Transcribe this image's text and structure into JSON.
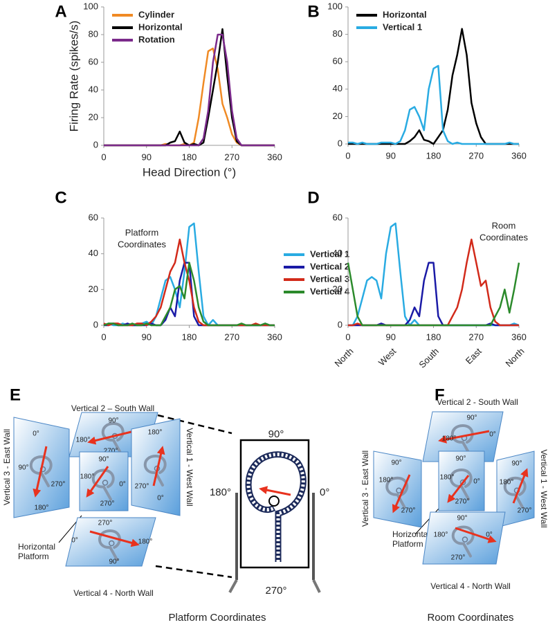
{
  "chart_data": [
    {
      "type": "line",
      "panel": "A",
      "x_label": "Head Direction (°)",
      "y_label": "Firing Rate (spikes/s)",
      "x": [
        0,
        10,
        20,
        30,
        40,
        50,
        60,
        70,
        80,
        90,
        100,
        110,
        120,
        130,
        140,
        150,
        160,
        170,
        180,
        190,
        200,
        210,
        220,
        230,
        240,
        250,
        260,
        270,
        280,
        290,
        300,
        310,
        320,
        330,
        340,
        350,
        360
      ],
      "xlim": [
        0,
        360
      ],
      "xticks": [
        0,
        90,
        180,
        270,
        360
      ],
      "ylim": [
        0,
        100
      ],
      "yticks": [
        0,
        20,
        40,
        60,
        80,
        100
      ],
      "series": [
        {
          "name": "Cylinder",
          "color": "#f08a24",
          "values": [
            0,
            0,
            0,
            0,
            0,
            0,
            0,
            0,
            0,
            0,
            0,
            0,
            0,
            1,
            0,
            0,
            0,
            1,
            0,
            2,
            20,
            45,
            68,
            70,
            55,
            30,
            20,
            8,
            2,
            0,
            0,
            0,
            0,
            0,
            0,
            0,
            0
          ]
        },
        {
          "name": "Horizontal",
          "color": "#000000",
          "values": [
            0,
            0,
            0,
            0,
            0,
            0,
            0,
            0,
            0,
            0,
            0,
            0,
            0,
            0,
            2,
            3,
            10,
            2,
            0,
            1,
            0,
            2,
            20,
            40,
            60,
            84,
            50,
            20,
            3,
            0,
            0,
            0,
            0,
            0,
            0,
            0,
            0
          ]
        },
        {
          "name": "Rotation",
          "color": "#7b2a8b",
          "values": [
            0,
            0,
            0,
            0,
            0,
            0,
            0,
            0,
            0,
            0,
            0,
            0,
            0,
            0,
            0,
            0,
            0,
            0,
            0,
            0,
            0,
            5,
            25,
            60,
            80,
            80,
            60,
            25,
            5,
            0,
            0,
            0,
            0,
            0,
            0,
            0,
            0
          ]
        }
      ]
    },
    {
      "type": "line",
      "panel": "B",
      "x": [
        0,
        10,
        20,
        30,
        40,
        50,
        60,
        70,
        80,
        90,
        100,
        110,
        120,
        130,
        140,
        150,
        160,
        170,
        180,
        190,
        200,
        210,
        220,
        230,
        240,
        250,
        260,
        270,
        280,
        290,
        300,
        310,
        320,
        330,
        340,
        350,
        360
      ],
      "xlim": [
        0,
        360
      ],
      "xticks": [
        0,
        90,
        180,
        270,
        360
      ],
      "ylim": [
        0,
        100
      ],
      "yticks": [
        0,
        20,
        40,
        60,
        80,
        100
      ],
      "series": [
        {
          "name": "Horizontal",
          "color": "#000000",
          "values": [
            0,
            0,
            0,
            0,
            0,
            0,
            0,
            0,
            0,
            0,
            0,
            0,
            0,
            2,
            5,
            10,
            3,
            2,
            0,
            5,
            10,
            25,
            50,
            65,
            84,
            65,
            30,
            15,
            5,
            0,
            0,
            0,
            0,
            0,
            0,
            0,
            0
          ]
        },
        {
          "name": "Vertical 1",
          "color": "#29abe2",
          "values": [
            1,
            1,
            0,
            1,
            0,
            0,
            0,
            1,
            1,
            1,
            0,
            2,
            10,
            25,
            27,
            20,
            10,
            40,
            55,
            57,
            10,
            2,
            0,
            1,
            0,
            0,
            0,
            0,
            0,
            0,
            0,
            0,
            0,
            0,
            1,
            0,
            0
          ]
        }
      ]
    },
    {
      "type": "line",
      "panel": "C",
      "annotation": [
        "Platform",
        "Coordinates"
      ],
      "x": [
        0,
        10,
        20,
        30,
        40,
        50,
        60,
        70,
        80,
        90,
        100,
        110,
        120,
        130,
        140,
        150,
        160,
        170,
        180,
        190,
        200,
        210,
        220,
        230,
        240,
        250,
        260,
        270,
        280,
        290,
        300,
        310,
        320,
        330,
        340,
        350,
        360
      ],
      "xlim": [
        0,
        360
      ],
      "xticks": [
        0,
        90,
        180,
        270,
        360
      ],
      "ylim": [
        0,
        60
      ],
      "yticks": [
        0,
        20,
        40,
        60
      ],
      "series": [
        {
          "name": "Vertical 1",
          "color": "#29abe2",
          "values": [
            0,
            1,
            0,
            0,
            1,
            0,
            0,
            0,
            1,
            2,
            0,
            5,
            15,
            25,
            27,
            20,
            10,
            30,
            55,
            57,
            30,
            5,
            0,
            3,
            0,
            0,
            0,
            0,
            0,
            0,
            0,
            0,
            0,
            0,
            1,
            0,
            0
          ]
        },
        {
          "name": "Vertical 2",
          "color": "#1a1aa6",
          "values": [
            0,
            0,
            1,
            0,
            0,
            1,
            0,
            0,
            0,
            0,
            1,
            0,
            0,
            3,
            10,
            5,
            25,
            35,
            35,
            5,
            0,
            0,
            0,
            0,
            0,
            0,
            0,
            0,
            0,
            0,
            0,
            0,
            0,
            0,
            0,
            0,
            0
          ]
        },
        {
          "name": "Vertical 3",
          "color": "#d22a1a",
          "values": [
            1,
            0,
            1,
            1,
            0,
            0,
            0,
            1,
            1,
            0,
            2,
            5,
            10,
            20,
            30,
            35,
            48,
            35,
            25,
            10,
            2,
            0,
            0,
            0,
            0,
            0,
            0,
            0,
            0,
            0,
            0,
            0,
            1,
            0,
            0,
            0,
            0
          ]
        },
        {
          "name": "Vertical 4",
          "color": "#2b8a2b",
          "values": [
            0,
            1,
            1,
            0,
            0,
            0,
            1,
            0,
            0,
            1,
            0,
            0,
            0,
            5,
            10,
            20,
            22,
            15,
            35,
            25,
            10,
            2,
            0,
            0,
            0,
            0,
            0,
            0,
            0,
            1,
            0,
            0,
            0,
            0,
            1,
            0,
            0
          ]
        }
      ]
    },
    {
      "type": "line",
      "panel": "D",
      "annotation": [
        "Room",
        "Coordinates"
      ],
      "x": [
        0,
        10,
        20,
        30,
        40,
        50,
        60,
        70,
        80,
        90,
        100,
        110,
        120,
        130,
        140,
        150,
        160,
        170,
        180,
        190,
        200,
        210,
        220,
        230,
        240,
        250,
        260,
        270,
        280,
        290,
        300,
        310,
        320,
        330,
        340,
        350,
        360
      ],
      "xlim": [
        0,
        360
      ],
      "xticks": [
        0,
        90,
        180,
        270,
        360
      ],
      "xtick_names": [
        "North",
        "West",
        "South",
        "East",
        "North"
      ],
      "ylim": [
        0,
        60
      ],
      "yticks": [
        0,
        20,
        40,
        60
      ],
      "series": [
        {
          "name": "Vertical 1",
          "color": "#29abe2",
          "values": [
            0,
            0,
            5,
            15,
            25,
            27,
            25,
            15,
            40,
            55,
            57,
            30,
            5,
            0,
            3,
            0,
            0,
            0,
            0,
            0,
            0,
            0,
            0,
            0,
            0,
            0,
            0,
            0,
            0,
            0,
            0,
            0,
            0,
            0,
            0,
            1,
            0
          ]
        },
        {
          "name": "Vertical 2",
          "color": "#1a1aa6",
          "values": [
            0,
            0,
            0,
            0,
            0,
            0,
            0,
            1,
            0,
            0,
            0,
            0,
            0,
            3,
            10,
            5,
            25,
            35,
            35,
            5,
            0,
            0,
            0,
            0,
            0,
            0,
            0,
            0,
            0,
            0,
            1,
            0,
            0,
            0,
            0,
            0,
            0
          ]
        },
        {
          "name": "Vertical 3",
          "color": "#d22a1a",
          "values": [
            0,
            0,
            1,
            0,
            0,
            0,
            0,
            0,
            0,
            0,
            0,
            0,
            0,
            0,
            0,
            0,
            0,
            0,
            0,
            0,
            0,
            0,
            5,
            10,
            20,
            35,
            48,
            35,
            22,
            25,
            10,
            2,
            0,
            0,
            0,
            0,
            0
          ]
        },
        {
          "name": "Vertical 4",
          "color": "#2b8a2b",
          "values": [
            35,
            20,
            5,
            0,
            0,
            0,
            0,
            0,
            0,
            0,
            0,
            0,
            0,
            0,
            0,
            0,
            0,
            0,
            0,
            0,
            0,
            0,
            0,
            0,
            0,
            0,
            0,
            0,
            0,
            0,
            0,
            5,
            10,
            20,
            7,
            20,
            35
          ]
        }
      ]
    }
  ],
  "diagrams": [
    {
      "letter": "E",
      "caption": "Platform Coordinates",
      "horizontal_label": [
        "Horizontal",
        "Platform"
      ],
      "walls": [
        {
          "title": "Vertical 2 – South Wall",
          "angles": [
            "90°",
            "180°",
            "0°",
            "270°"
          ]
        },
        {
          "title": "Vertical 3 - East Wall",
          "angles": [
            "0°",
            "90°",
            "270°",
            "180°"
          ]
        },
        {
          "angles": [
            "90°",
            "180°",
            "0°",
            "270°"
          ]
        },
        {
          "title": "Vertical 1 - West Wall",
          "angles": [
            "180°",
            "270°",
            "0°"
          ]
        },
        {
          "title": "Vertical 4 - North Wall",
          "angles": [
            "270°",
            "0°",
            "180°",
            "90°"
          ]
        }
      ],
      "platform_view": {
        "angles": [
          "90°",
          "180°",
          "0°",
          "270°"
        ]
      }
    },
    {
      "letter": "F",
      "caption": "Room Coordinates",
      "horizontal_label": [
        "Horizontal",
        "Platform"
      ],
      "walls": [
        {
          "title": "Vertical 2 - South Wall",
          "angles": [
            "90°",
            "180°",
            "0°",
            "270°"
          ]
        },
        {
          "title": "Vertical 3 - East Wall",
          "angles": [
            "90°",
            "180°",
            "270°"
          ]
        },
        {
          "angles": [
            "90°",
            "180°",
            "0°",
            "270°"
          ]
        },
        {
          "title": "Vertical 1 - West Wall",
          "angles": [
            "90°",
            "180°",
            "270°"
          ]
        },
        {
          "title": "Vertical 4 - North Wall",
          "angles": [
            "90°",
            "180°",
            "0°",
            "270°"
          ]
        }
      ]
    }
  ]
}
